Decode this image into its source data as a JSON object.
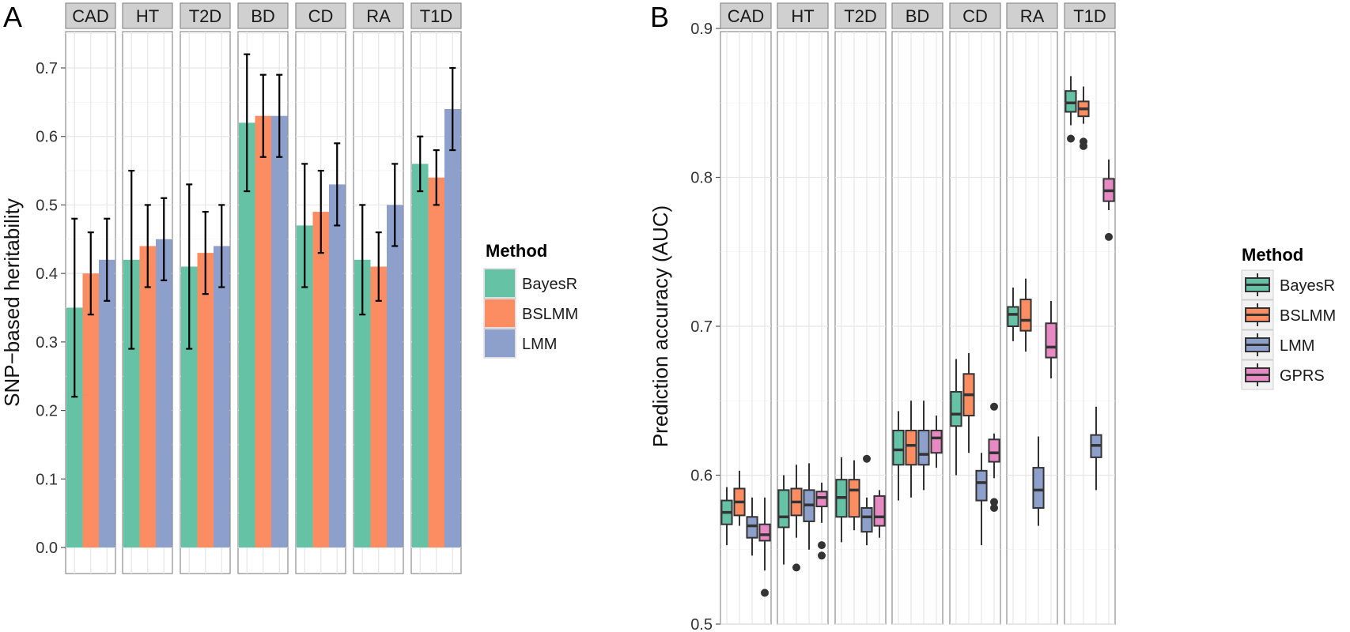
{
  "colors": {
    "BayesR": "#66c2a5",
    "BSLMM": "#fc8d62",
    "LMM": "#8da0cb",
    "GPRS": "#e78ac3"
  },
  "chart_data": [
    {
      "panel": "A",
      "type": "bar",
      "facets": [
        "CAD",
        "HT",
        "T2D",
        "BD",
        "CD",
        "RA",
        "T1D"
      ],
      "ylabel": "SNP−based heritability",
      "ylim": [
        0,
        0.76
      ],
      "yticks": [
        "0.0",
        "0.1",
        "0.2",
        "0.3",
        "0.4",
        "0.5",
        "0.6",
        "0.7"
      ],
      "grid": true,
      "legend": {
        "title": "Method",
        "position": "right",
        "items": [
          "BayesR",
          "BSLMM",
          "LMM"
        ]
      },
      "series": [
        {
          "name": "BayesR",
          "values": [
            0.35,
            0.42,
            0.41,
            0.62,
            0.47,
            0.42,
            0.56
          ],
          "lower": [
            0.22,
            0.29,
            0.29,
            0.52,
            0.38,
            0.34,
            0.52
          ],
          "upper": [
            0.48,
            0.55,
            0.53,
            0.72,
            0.56,
            0.5,
            0.6
          ]
        },
        {
          "name": "BSLMM",
          "values": [
            0.4,
            0.44,
            0.43,
            0.63,
            0.49,
            0.41,
            0.54
          ],
          "lower": [
            0.34,
            0.38,
            0.37,
            0.57,
            0.43,
            0.36,
            0.5
          ],
          "upper": [
            0.46,
            0.5,
            0.49,
            0.69,
            0.55,
            0.46,
            0.58
          ]
        },
        {
          "name": "LMM",
          "values": [
            0.42,
            0.45,
            0.44,
            0.63,
            0.53,
            0.5,
            0.64
          ],
          "lower": [
            0.36,
            0.39,
            0.38,
            0.57,
            0.47,
            0.44,
            0.58
          ],
          "upper": [
            0.48,
            0.51,
            0.5,
            0.69,
            0.59,
            0.56,
            0.7
          ]
        }
      ]
    },
    {
      "panel": "B",
      "type": "boxplot",
      "facets": [
        "CAD",
        "HT",
        "T2D",
        "BD",
        "CD",
        "RA",
        "T1D"
      ],
      "ylabel": "Prediction accuracy (AUC)",
      "ylim": [
        0.5,
        0.9
      ],
      "yticks": [
        "0.5",
        "0.6",
        "0.7",
        "0.8",
        "0.9"
      ],
      "grid": true,
      "legend": {
        "title": "Method",
        "position": "right",
        "items": [
          "BayesR",
          "BSLMM",
          "LMM",
          "GPRS"
        ]
      },
      "series": [
        {
          "name": "BayesR",
          "boxes": [
            {
              "facet": "CAD",
              "min": 0.553,
              "q1": 0.567,
              "median": 0.575,
              "q3": 0.583,
              "max": 0.592,
              "outliers": []
            },
            {
              "facet": "HT",
              "min": 0.54,
              "q1": 0.565,
              "median": 0.572,
              "q3": 0.59,
              "max": 0.6,
              "outliers": []
            },
            {
              "facet": "T2D",
              "min": 0.555,
              "q1": 0.572,
              "median": 0.585,
              "q3": 0.597,
              "max": 0.612,
              "outliers": []
            },
            {
              "facet": "BD",
              "min": 0.583,
              "q1": 0.607,
              "median": 0.617,
              "q3": 0.63,
              "max": 0.643,
              "outliers": []
            },
            {
              "facet": "CD",
              "min": 0.6,
              "q1": 0.633,
              "median": 0.641,
              "q3": 0.656,
              "max": 0.678,
              "outliers": []
            },
            {
              "facet": "RA",
              "min": 0.69,
              "q1": 0.7,
              "median": 0.708,
              "q3": 0.713,
              "max": 0.726,
              "outliers": []
            },
            {
              "facet": "T1D",
              "min": 0.835,
              "q1": 0.844,
              "median": 0.85,
              "q3": 0.858,
              "max": 0.868,
              "outliers": [
                0.826
              ]
            }
          ]
        },
        {
          "name": "BSLMM",
          "boxes": [
            {
              "facet": "CAD",
              "min": 0.566,
              "q1": 0.573,
              "median": 0.582,
              "q3": 0.591,
              "max": 0.603,
              "outliers": []
            },
            {
              "facet": "HT",
              "min": 0.558,
              "q1": 0.573,
              "median": 0.582,
              "q3": 0.591,
              "max": 0.607,
              "outliers": [
                0.538
              ]
            },
            {
              "facet": "T2D",
              "min": 0.563,
              "q1": 0.572,
              "median": 0.59,
              "q3": 0.597,
              "max": 0.61,
              "outliers": []
            },
            {
              "facet": "BD",
              "min": 0.585,
              "q1": 0.607,
              "median": 0.62,
              "q3": 0.63,
              "max": 0.65,
              "outliers": []
            },
            {
              "facet": "CD",
              "min": 0.615,
              "q1": 0.64,
              "median": 0.654,
              "q3": 0.668,
              "max": 0.682,
              "outliers": []
            },
            {
              "facet": "RA",
              "min": 0.683,
              "q1": 0.697,
              "median": 0.704,
              "q3": 0.718,
              "max": 0.732,
              "outliers": []
            },
            {
              "facet": "T1D",
              "min": 0.836,
              "q1": 0.841,
              "median": 0.846,
              "q3": 0.851,
              "max": 0.861,
              "outliers": [
                0.824,
                0.821
              ]
            }
          ]
        },
        {
          "name": "LMM",
          "boxes": [
            {
              "facet": "CAD",
              "min": 0.546,
              "q1": 0.558,
              "median": 0.566,
              "q3": 0.572,
              "max": 0.585,
              "outliers": []
            },
            {
              "facet": "HT",
              "min": 0.55,
              "q1": 0.569,
              "median": 0.58,
              "q3": 0.59,
              "max": 0.608,
              "outliers": []
            },
            {
              "facet": "T2D",
              "min": 0.553,
              "q1": 0.562,
              "median": 0.572,
              "q3": 0.578,
              "max": 0.585,
              "outliers": [
                0.611
              ]
            },
            {
              "facet": "BD",
              "min": 0.59,
              "q1": 0.607,
              "median": 0.614,
              "q3": 0.63,
              "max": 0.65,
              "outliers": []
            },
            {
              "facet": "CD",
              "min": 0.553,
              "q1": 0.583,
              "median": 0.595,
              "q3": 0.603,
              "max": 0.615,
              "outliers": []
            },
            {
              "facet": "RA",
              "min": 0.566,
              "q1": 0.578,
              "median": 0.59,
              "q3": 0.605,
              "max": 0.626,
              "outliers": []
            },
            {
              "facet": "T1D",
              "min": 0.59,
              "q1": 0.612,
              "median": 0.62,
              "q3": 0.627,
              "max": 0.646,
              "outliers": []
            }
          ]
        },
        {
          "name": "GPRS",
          "boxes": [
            {
              "facet": "CAD",
              "min": 0.536,
              "q1": 0.556,
              "median": 0.56,
              "q3": 0.567,
              "max": 0.585,
              "outliers": [
                0.521
              ]
            },
            {
              "facet": "HT",
              "min": 0.568,
              "q1": 0.579,
              "median": 0.585,
              "q3": 0.589,
              "max": 0.595,
              "outliers": [
                0.553,
                0.546
              ]
            },
            {
              "facet": "T2D",
              "min": 0.558,
              "q1": 0.566,
              "median": 0.572,
              "q3": 0.586,
              "max": 0.59,
              "outliers": []
            },
            {
              "facet": "BD",
              "min": 0.605,
              "q1": 0.615,
              "median": 0.625,
              "q3": 0.63,
              "max": 0.64,
              "outliers": []
            },
            {
              "facet": "CD",
              "min": 0.598,
              "q1": 0.609,
              "median": 0.615,
              "q3": 0.624,
              "max": 0.628,
              "outliers": [
                0.646,
                0.582,
                0.578
              ]
            },
            {
              "facet": "RA",
              "min": 0.665,
              "q1": 0.679,
              "median": 0.686,
              "q3": 0.702,
              "max": 0.717,
              "outliers": []
            },
            {
              "facet": "T1D",
              "min": 0.778,
              "q1": 0.784,
              "median": 0.791,
              "q3": 0.799,
              "max": 0.812,
              "outliers": [
                0.76
              ]
            }
          ]
        }
      ]
    }
  ]
}
